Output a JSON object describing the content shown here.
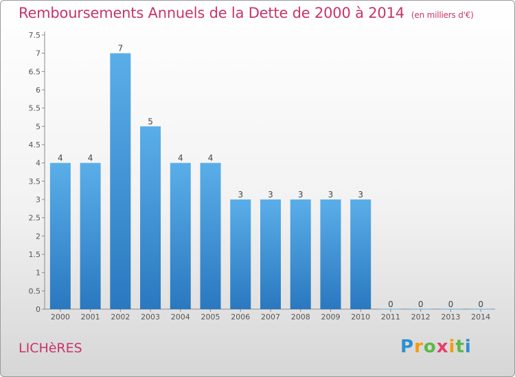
{
  "header": {
    "title": "Remboursements Annuels de la Dette de 2000 à 2014",
    "unit": "(en milliers d'€)"
  },
  "footer": {
    "commune": "LICHèRES",
    "logo_letters": [
      "P",
      "r",
      "o",
      "x",
      "i",
      "t",
      "i"
    ],
    "logo_colors": [
      "#2e8fd0",
      "#f39c12",
      "#5db846",
      "#e83d6b",
      "#f39c12",
      "#5db846",
      "#2e8fd0"
    ]
  },
  "chart_data": {
    "type": "bar",
    "title": "Remboursements Annuels de la Dette de 2000 à 2014",
    "xlabel": "",
    "ylabel": "",
    "categories": [
      "2000",
      "2001",
      "2002",
      "2003",
      "2004",
      "2005",
      "2006",
      "2007",
      "2008",
      "2009",
      "2010",
      "2011",
      "2012",
      "2013",
      "2014"
    ],
    "values": [
      4,
      4,
      7,
      5,
      4,
      4,
      3,
      3,
      3,
      3,
      3,
      0,
      0,
      0,
      0
    ],
    "ylim": [
      0,
      7.5
    ],
    "yticks": [
      "0",
      "0.5",
      "1",
      "1.5",
      "2",
      "2.5",
      "3",
      "3.5",
      "4",
      "4.5",
      "5",
      "5.5",
      "6",
      "6.5",
      "7",
      "7.5"
    ],
    "grid": false,
    "legend": "none",
    "bar_color_top": "#5aaee8",
    "bar_color_bottom": "#2a78c0"
  }
}
